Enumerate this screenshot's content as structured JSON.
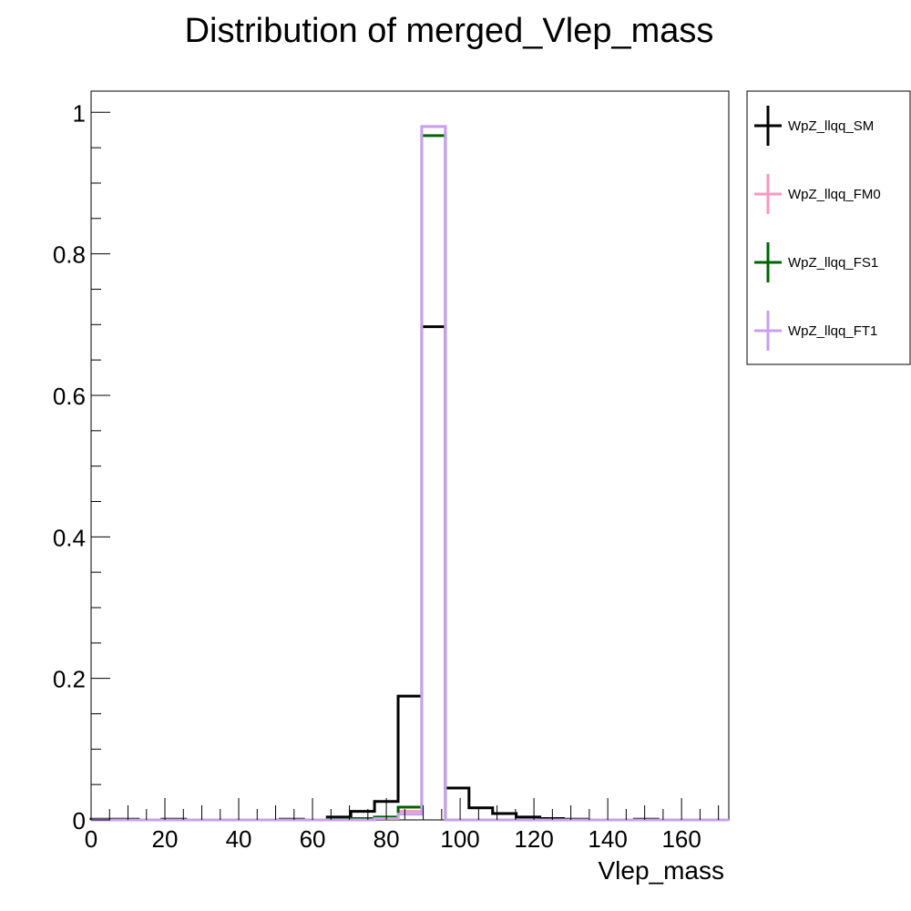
{
  "chart_data": {
    "type": "histogram",
    "title": "Distribution of merged_Vlep_mass",
    "xlabel": "Vlep_mass",
    "ylabel": "",
    "xlim": [
      0,
      172.8
    ],
    "ylim": [
      0,
      1.03
    ],
    "bin_width": 6.4,
    "x_ticks": [
      0,
      20,
      40,
      60,
      80,
      100,
      120,
      140,
      160
    ],
    "y_ticks": [
      0,
      0.2,
      0.4,
      0.6,
      0.8,
      1
    ],
    "y_tick_labels": [
      "0",
      "0.2",
      "0.4",
      "0.6",
      "0.8",
      "1"
    ],
    "x_tick_labels": [
      "0",
      "20",
      "40",
      "60",
      "80",
      "100",
      "120",
      "140",
      "160"
    ],
    "legend_position": "outside-right",
    "grid": false,
    "series": [
      {
        "name": "WpZ_llqq_SM",
        "color": "#000000",
        "values": [
          0.001,
          0.001,
          0,
          0.001,
          0,
          0,
          0,
          0,
          0.001,
          0,
          0.004,
          0.012,
          0.026,
          0.175,
          0.697,
          0.045,
          0.017,
          0.009,
          0.004,
          0.002,
          0.001,
          0,
          0,
          0.001,
          0,
          0,
          0
        ]
      },
      {
        "name": "WpZ_llqq_FM0",
        "color": "#f49ac1",
        "values": [
          0,
          0,
          0,
          0,
          0,
          0,
          0,
          0,
          0,
          0,
          0,
          0,
          0.002,
          0.012,
          0.98,
          0,
          0,
          0,
          0,
          0,
          0,
          0,
          0,
          0,
          0,
          0,
          0
        ]
      },
      {
        "name": "WpZ_llqq_FS1",
        "color": "#006400",
        "values": [
          0,
          0,
          0,
          0,
          0,
          0,
          0,
          0,
          0,
          0,
          0.001,
          0.002,
          0.004,
          0.018,
          0.967,
          0,
          0,
          0,
          0,
          0,
          0,
          0,
          0,
          0,
          0,
          0,
          0
        ]
      },
      {
        "name": "WpZ_llqq_FT1",
        "color": "#c8a0f0",
        "values": [
          0,
          0,
          0,
          0,
          0,
          0,
          0,
          0,
          0,
          0,
          0,
          0,
          0.002,
          0.008,
          0.98,
          0,
          0,
          0,
          0,
          0,
          0,
          0,
          0,
          0,
          0,
          0,
          0
        ]
      }
    ]
  }
}
